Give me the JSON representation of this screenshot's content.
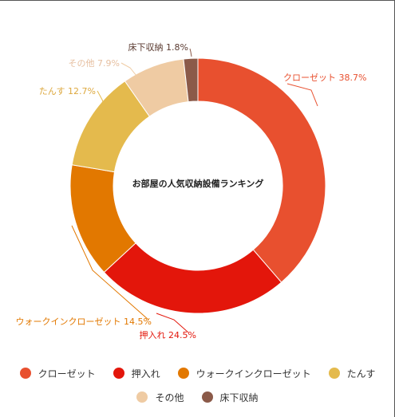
{
  "chart_data": {
    "type": "pie",
    "title": "お部屋の人気収納設備ランキング",
    "slices": [
      {
        "label": "クローゼット",
        "value": 38.7,
        "value_text": "38.7%",
        "color": "#E8502F"
      },
      {
        "label": "押入れ",
        "value": 24.5,
        "value_text": "24.5%",
        "color": "#E3160B"
      },
      {
        "label": "ウォークインクローゼット",
        "value": 14.5,
        "value_text": "14.5%",
        "color": "#E27800"
      },
      {
        "label": "たんす",
        "value": 12.7,
        "value_text": "12.7%",
        "color": "#E4BA4D"
      },
      {
        "label": "その他",
        "value": 7.9,
        "value_text": "7.9%",
        "color": "#EFCBA3"
      },
      {
        "label": "床下収納",
        "value": 1.8,
        "value_text": "1.8%",
        "color": "#8B5A49"
      }
    ],
    "legend_position": "bottom"
  }
}
